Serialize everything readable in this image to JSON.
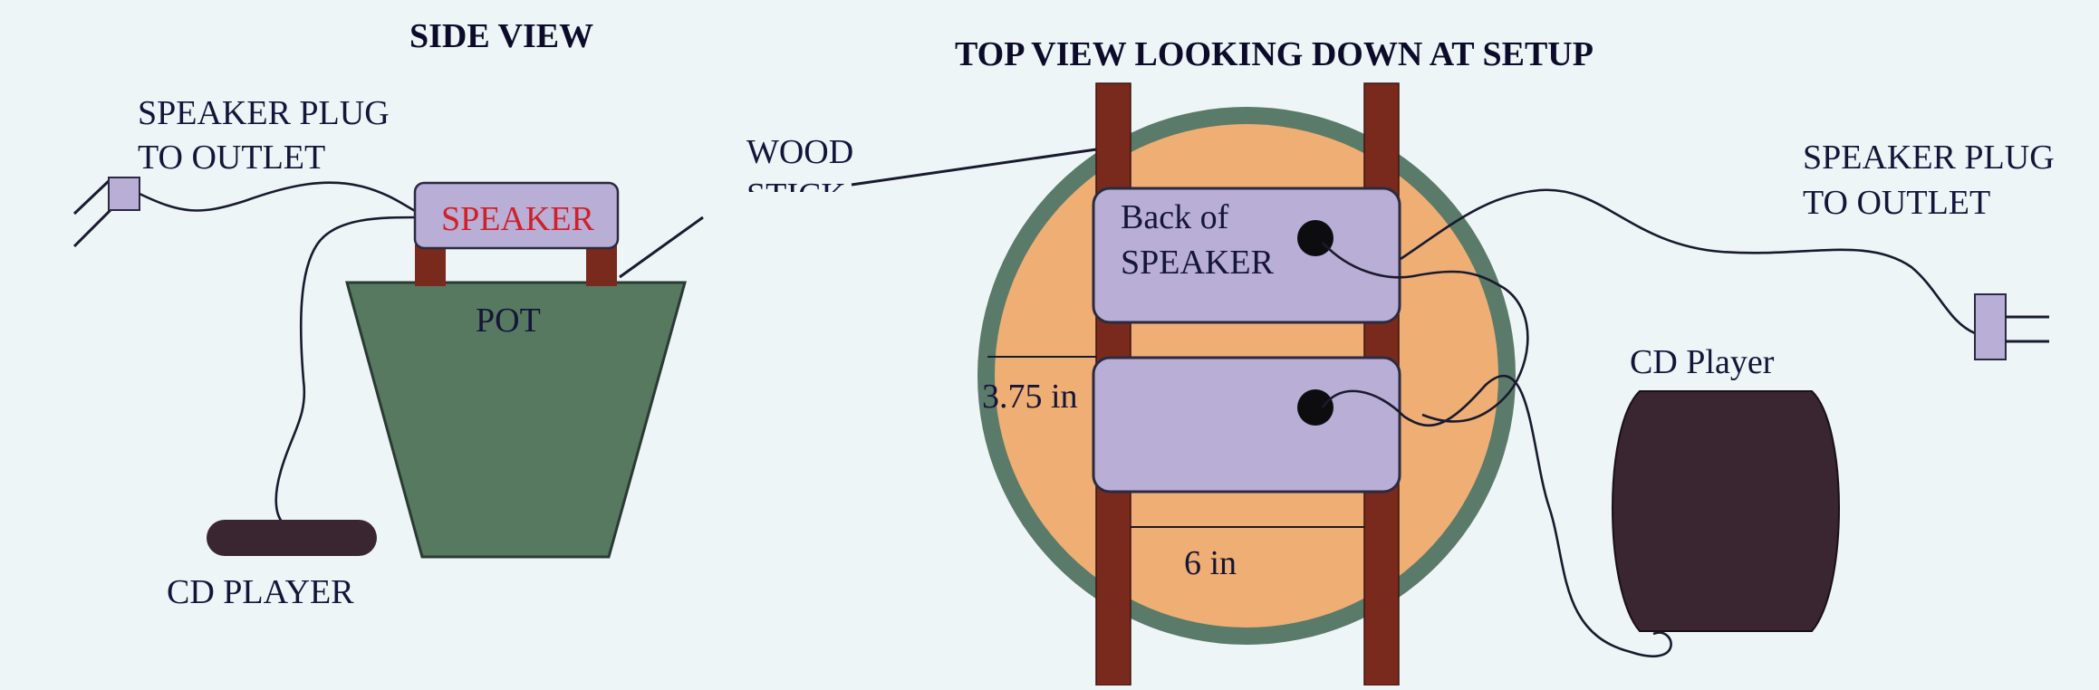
{
  "side_view": {
    "title": "SIDE VIEW",
    "plug_label_line1": "SPEAKER PLUG",
    "plug_label_line2": "TO OUTLET",
    "speaker_label": "SPEAKER",
    "pot_label": "POT",
    "cd_player_label": "CD PLAYER"
  },
  "wood_stick_label": {
    "line1": "WOOD",
    "line2": "STICK"
  },
  "top_view": {
    "title": "TOP VIEW LOOKING DOWN AT SETUP",
    "speaker_back_line1": "Back of",
    "speaker_back_line2": "SPEAKER",
    "gap_dimension": "3.75 in",
    "width_dimension": "6 in",
    "plug_label_line1": "SPEAKER PLUG",
    "plug_label_line2": "TO OUTLET",
    "cd_player_label": "CD Player"
  },
  "colors": {
    "background": "#eef5f7",
    "speaker_fill": "#b8aed6",
    "wood": "#7a2a1c",
    "pot_green": "#56795f",
    "pot_rim": "#5a7a6a",
    "soil_orange": "#eeae74",
    "cd_player": "#3a2630",
    "speaker_text_red": "#d0202a"
  }
}
